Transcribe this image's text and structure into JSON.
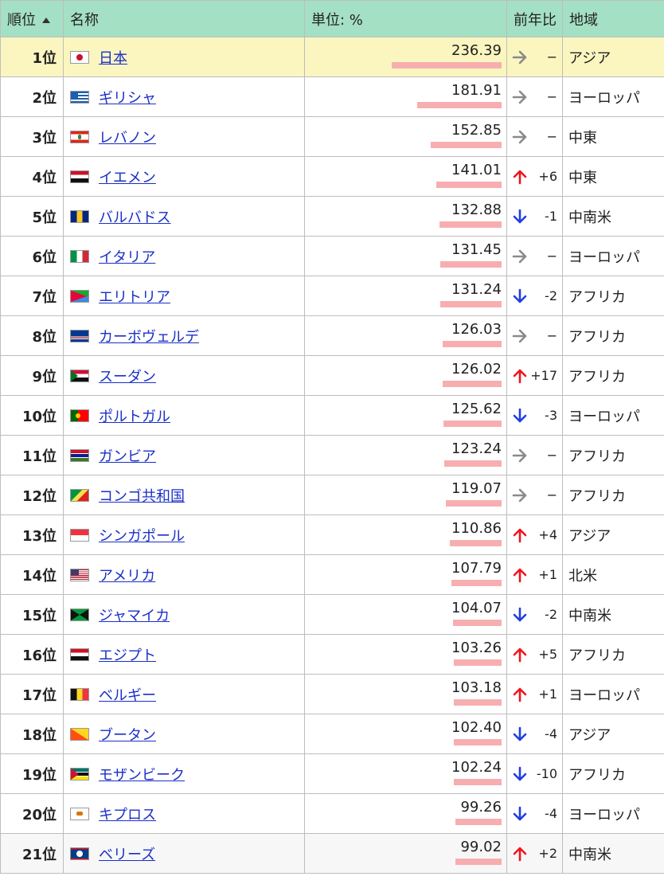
{
  "header": {
    "rank": "順位",
    "name": "名称",
    "value": "単位: %",
    "change": "前年比",
    "region": "地域"
  },
  "colors": {
    "up": "#f0141e",
    "down": "#1f3ee0",
    "same": "#8a8a8a",
    "bar": "#f7aeb0",
    "header_bg": "#a4e0c3"
  },
  "rows": [
    {
      "rank": "1位",
      "name": "日本",
      "value": "236.39",
      "trend": "same",
      "change": "−",
      "region": "アジア",
      "flag": "jp"
    },
    {
      "rank": "2位",
      "name": "ギリシャ",
      "value": "181.91",
      "trend": "same",
      "change": "−",
      "region": "ヨーロッパ",
      "flag": "gr"
    },
    {
      "rank": "3位",
      "name": "レバノン",
      "value": "152.85",
      "trend": "same",
      "change": "−",
      "region": "中東",
      "flag": "lb"
    },
    {
      "rank": "4位",
      "name": "イエメン",
      "value": "141.01",
      "trend": "up",
      "change": "+6",
      "region": "中東",
      "flag": "ye"
    },
    {
      "rank": "5位",
      "name": "バルバドス",
      "value": "132.88",
      "trend": "down",
      "change": "-1",
      "region": "中南米",
      "flag": "bb"
    },
    {
      "rank": "6位",
      "name": "イタリア",
      "value": "131.45",
      "trend": "same",
      "change": "−",
      "region": "ヨーロッパ",
      "flag": "it"
    },
    {
      "rank": "7位",
      "name": "エリトリア",
      "value": "131.24",
      "trend": "down",
      "change": "-2",
      "region": "アフリカ",
      "flag": "er"
    },
    {
      "rank": "8位",
      "name": "カーボヴェルデ",
      "value": "126.03",
      "trend": "same",
      "change": "−",
      "region": "アフリカ",
      "flag": "cv"
    },
    {
      "rank": "9位",
      "name": "スーダン",
      "value": "126.02",
      "trend": "up",
      "change": "+17",
      "region": "アフリカ",
      "flag": "sd"
    },
    {
      "rank": "10位",
      "name": "ポルトガル",
      "value": "125.62",
      "trend": "down",
      "change": "-3",
      "region": "ヨーロッパ",
      "flag": "pt"
    },
    {
      "rank": "11位",
      "name": "ガンビア",
      "value": "123.24",
      "trend": "same",
      "change": "−",
      "region": "アフリカ",
      "flag": "gm"
    },
    {
      "rank": "12位",
      "name": "コンゴ共和国",
      "value": "119.07",
      "trend": "same",
      "change": "−",
      "region": "アフリカ",
      "flag": "cg"
    },
    {
      "rank": "13位",
      "name": "シンガポール",
      "value": "110.86",
      "trend": "up",
      "change": "+4",
      "region": "アジア",
      "flag": "sg"
    },
    {
      "rank": "14位",
      "name": "アメリカ",
      "value": "107.79",
      "trend": "up",
      "change": "+1",
      "region": "北米",
      "flag": "us"
    },
    {
      "rank": "15位",
      "name": "ジャマイカ",
      "value": "104.07",
      "trend": "down",
      "change": "-2",
      "region": "中南米",
      "flag": "jm"
    },
    {
      "rank": "16位",
      "name": "エジプト",
      "value": "103.26",
      "trend": "up",
      "change": "+5",
      "region": "アフリカ",
      "flag": "eg"
    },
    {
      "rank": "17位",
      "name": "ベルギー",
      "value": "103.18",
      "trend": "up",
      "change": "+1",
      "region": "ヨーロッパ",
      "flag": "be"
    },
    {
      "rank": "18位",
      "name": "ブータン",
      "value": "102.40",
      "trend": "down",
      "change": "-4",
      "region": "アジア",
      "flag": "bt"
    },
    {
      "rank": "19位",
      "name": "モザンビーク",
      "value": "102.24",
      "trend": "down",
      "change": "-10",
      "region": "アフリカ",
      "flag": "mz"
    },
    {
      "rank": "20位",
      "name": "キプロス",
      "value": "99.26",
      "trend": "down",
      "change": "-4",
      "region": "ヨーロッパ",
      "flag": "cy"
    },
    {
      "rank": "21位",
      "name": "ベリーズ",
      "value": "99.02",
      "trend": "up",
      "change": "+2",
      "region": "中南米",
      "flag": "bz"
    }
  ]
}
